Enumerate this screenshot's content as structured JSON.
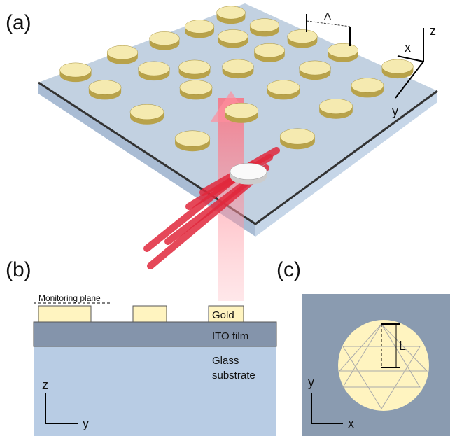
{
  "panel_a": {
    "label": "(a)",
    "period": "Λ",
    "axes": {
      "z": "z",
      "x": "x",
      "y": "y"
    }
  },
  "panel_b": {
    "label": "(b)",
    "monitoring_plane": "Monitoring plane",
    "gold": "Gold",
    "ito": "ITO film",
    "glass": [
      "Glass",
      "substrate"
    ],
    "axes": {
      "z": "z",
      "y": "y"
    }
  },
  "panel_c": {
    "label": "(c)",
    "length": "L",
    "axes": {
      "y": "y",
      "x": "x"
    }
  }
}
